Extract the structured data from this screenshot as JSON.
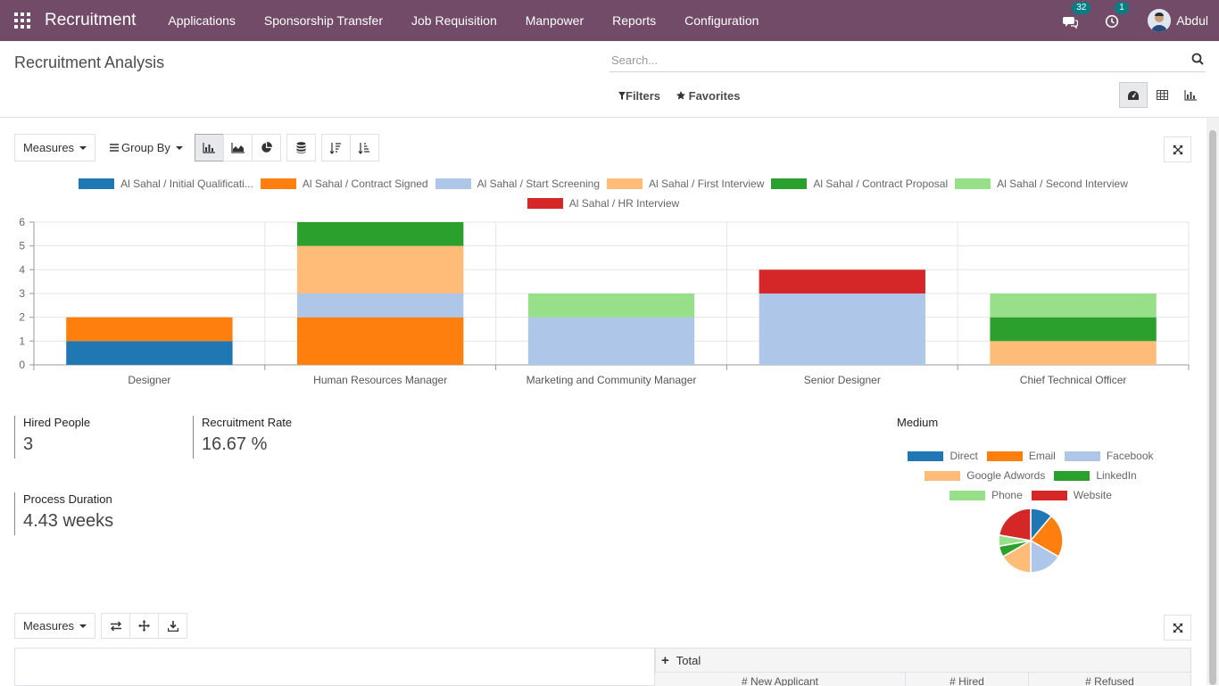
{
  "navbar": {
    "brand": "Recruitment",
    "menu": [
      "Applications",
      "Sponsorship Transfer",
      "Job Requisition",
      "Manpower",
      "Reports",
      "Configuration"
    ],
    "messages_count": "32",
    "activities_count": "1",
    "user_name": "Abdul",
    "bg_color": "#714b67",
    "badge_color": "#017e84"
  },
  "control_panel": {
    "title": "Recruitment Analysis",
    "search_placeholder": "Search...",
    "filters_label": "Filters",
    "favorites_label": "Favorites",
    "views": [
      "dashboard-icon",
      "table-icon",
      "bar-chart-icon"
    ],
    "active_view": "dashboard-icon"
  },
  "graph_toolbar": {
    "measures_label": "Measures",
    "group_by_label": "Group By",
    "active_chart_type": "bar"
  },
  "chart_data": [
    {
      "type": "bar",
      "stacked": true,
      "categories": [
        "Designer",
        "Human Resources Manager",
        "Marketing and Community Manager",
        "Senior Designer",
        "Chief Technical Officer"
      ],
      "series": [
        {
          "name": "Al Sahal / Initial Qualificati...",
          "color": "#1f77b4",
          "values": [
            1,
            0,
            0,
            0,
            0
          ]
        },
        {
          "name": "Al Sahal / Contract Signed",
          "color": "#ff7f0e",
          "values": [
            1,
            2,
            0,
            0,
            0
          ]
        },
        {
          "name": "Al Sahal / Start Screening",
          "color": "#aec7e8",
          "values": [
            0,
            1,
            2,
            3,
            0
          ]
        },
        {
          "name": "Al Sahal / First Interview",
          "color": "#ffbb78",
          "values": [
            0,
            2,
            0,
            0,
            1
          ]
        },
        {
          "name": "Al Sahal / Contract Proposal",
          "color": "#2ca02c",
          "values": [
            0,
            1,
            0,
            0,
            1
          ]
        },
        {
          "name": "Al Sahal / Second Interview",
          "color": "#98df8a",
          "values": [
            0,
            0,
            1,
            0,
            1
          ]
        },
        {
          "name": "Al Sahal / HR Interview",
          "color": "#d62728",
          "values": [
            0,
            0,
            0,
            1,
            0
          ]
        }
      ],
      "ylim": [
        0,
        6
      ],
      "yticks": [
        0,
        1,
        2,
        3,
        4,
        5,
        6
      ],
      "grid": true,
      "legend": "top-center"
    },
    {
      "type": "pie",
      "title": "Medium",
      "slices": [
        {
          "name": "Direct",
          "color": "#1f77b4",
          "value": 2
        },
        {
          "name": "Email",
          "color": "#ff7f0e",
          "value": 4
        },
        {
          "name": "Facebook",
          "color": "#aec7e8",
          "value": 3
        },
        {
          "name": "Google Adwords",
          "color": "#ffbb78",
          "value": 3
        },
        {
          "name": "LinkedIn",
          "color": "#2ca02c",
          "value": 1
        },
        {
          "name": "Phone",
          "color": "#98df8a",
          "value": 1
        },
        {
          "name": "Website",
          "color": "#d62728",
          "value": 4
        }
      ],
      "legend": "top-center"
    }
  ],
  "kpis": {
    "hired_label": "Hired People",
    "hired_value": "3",
    "rate_label": "Recruitment Rate",
    "rate_value": "16.67 %",
    "duration_label": "Process Duration",
    "duration_value": "4.43 weeks"
  },
  "pivot": {
    "measures_label": "Measures",
    "total_label": "Total",
    "measures": [
      "# New Applicant",
      "# Hired",
      "# Refused"
    ]
  }
}
